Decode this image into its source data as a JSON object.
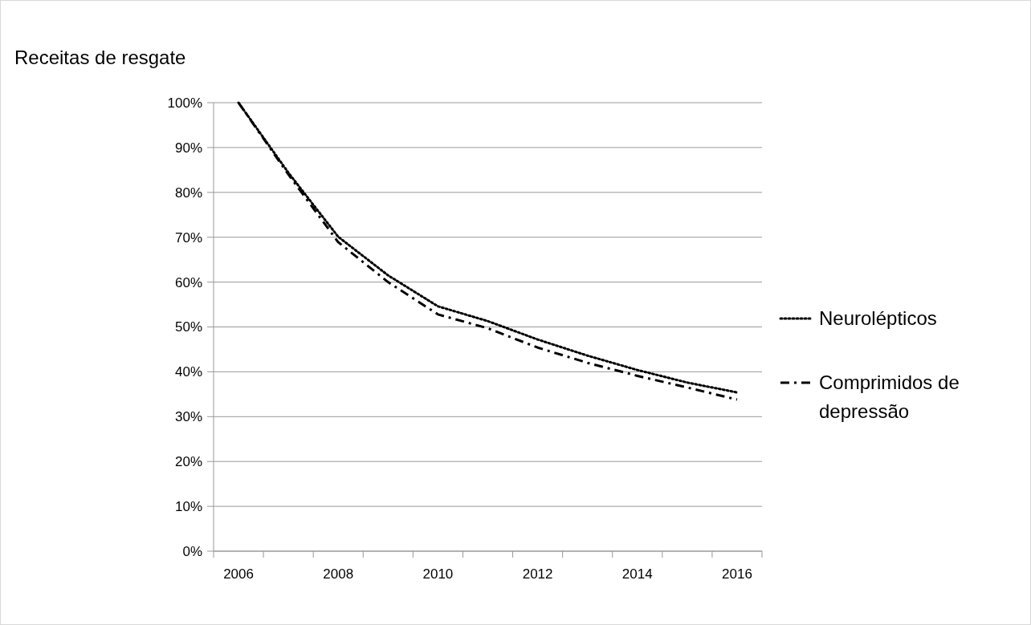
{
  "chart_data": {
    "type": "line",
    "title": "Receitas de resgate",
    "categories": [
      "2006",
      null,
      "2008",
      null,
      "2010",
      null,
      "2012",
      null,
      "2014",
      null,
      "2016"
    ],
    "series": [
      {
        "name": "Neurolépticos",
        "color": "#000000",
        "line_style": "dotted",
        "values": [
          100,
          84.4,
          70.1,
          61.5,
          54.6,
          51.3,
          47.2,
          43.6,
          40.4,
          37.6,
          35.4
        ]
      },
      {
        "name": "Comprimidos de depressão",
        "color": "#000000",
        "line_style": "dashed",
        "values": [
          100,
          84.0,
          68.9,
          60.0,
          52.8,
          49.7,
          45.4,
          42.0,
          39.1,
          36.5,
          33.8
        ]
      }
    ],
    "ylim": [
      0,
      100
    ],
    "yticks": [
      {
        "value": 0,
        "label": "0%"
      },
      {
        "value": 10,
        "label": "10%"
      },
      {
        "value": 20,
        "label": "20%"
      },
      {
        "value": 30,
        "label": "30%"
      },
      {
        "value": 40,
        "label": "40%"
      },
      {
        "value": 50,
        "label": "50%"
      },
      {
        "value": 60,
        "label": "60%"
      },
      {
        "value": 70,
        "label": "70%"
      },
      {
        "value": 80,
        "label": "80%"
      },
      {
        "value": 90,
        "label": "90%"
      },
      {
        "value": 100,
        "label": "100%"
      }
    ],
    "grid": "y",
    "legend": "right",
    "marker": "none"
  }
}
